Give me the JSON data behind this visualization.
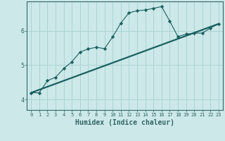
{
  "title": "",
  "xlabel": "Humidex (Indice chaleur)",
  "bg_color": "#cce8e8",
  "grid_color": "#aad4d4",
  "line_color": "#1a6060",
  "xlim": [
    -0.5,
    23.5
  ],
  "ylim": [
    3.7,
    6.85
  ],
  "yticks": [
    4,
    5,
    6
  ],
  "xticks": [
    0,
    1,
    2,
    3,
    4,
    5,
    6,
    7,
    8,
    9,
    10,
    11,
    12,
    13,
    14,
    15,
    16,
    17,
    18,
    19,
    20,
    21,
    22,
    23
  ],
  "curve_x": [
    0,
    1,
    2,
    3,
    4,
    5,
    6,
    7,
    8,
    9,
    10,
    11,
    12,
    13,
    14,
    15,
    16,
    17,
    18,
    19,
    20,
    21,
    22,
    23
  ],
  "curve_y": [
    4.2,
    4.2,
    4.55,
    4.65,
    4.9,
    5.1,
    5.38,
    5.47,
    5.52,
    5.48,
    5.82,
    6.22,
    6.52,
    6.58,
    6.6,
    6.65,
    6.7,
    6.28,
    5.83,
    5.9,
    5.93,
    5.93,
    6.08,
    6.2
  ],
  "trend_x": [
    0,
    23
  ],
  "trend_y": [
    4.2,
    6.2
  ],
  "xlabel_fontsize": 7,
  "tick_fontsize": 5.5,
  "spine_color": "#336666"
}
